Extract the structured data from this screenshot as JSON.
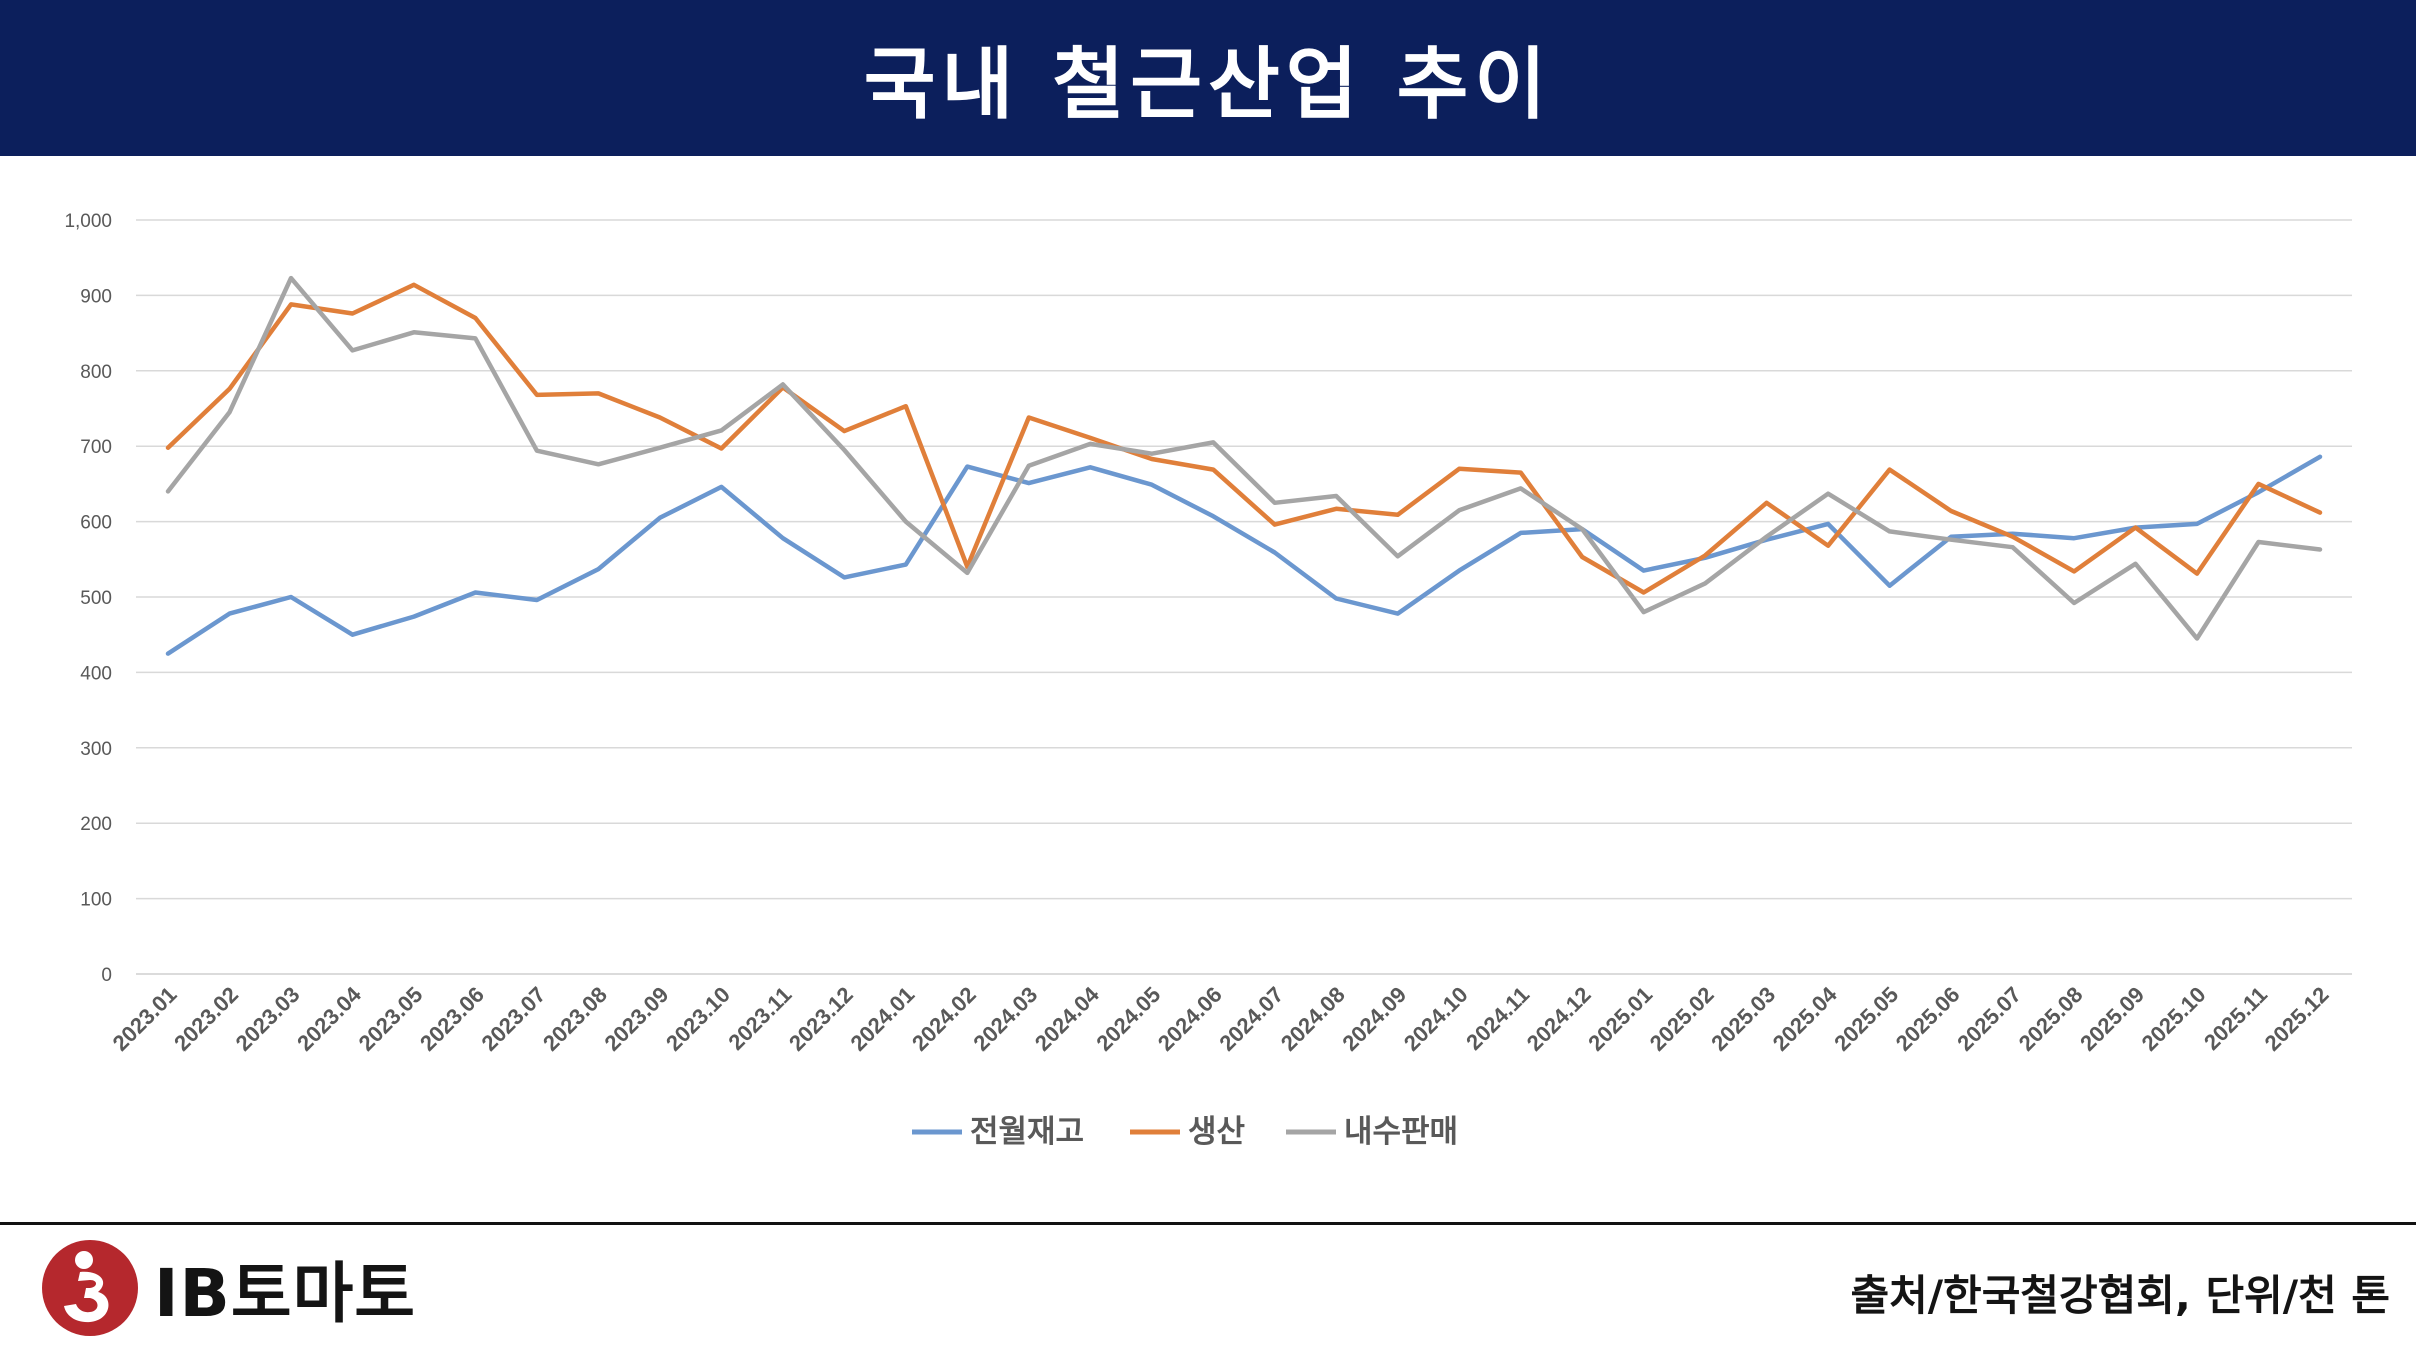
{
  "header": {
    "title": "국내 철근산업 추이"
  },
  "footer": {
    "logo_text": "IB토마토",
    "source": "출처/한국철강협회, 단위/천 톤"
  },
  "chart_data": {
    "type": "line",
    "title": "",
    "xlabel": "",
    "ylabel": "",
    "ylim": [
      0,
      1000
    ],
    "yticks": [
      0,
      100,
      200,
      300,
      400,
      500,
      600,
      700,
      800,
      900,
      1000
    ],
    "ytick_labels": [
      "0",
      "100",
      "200",
      "300",
      "400",
      "500",
      "600",
      "700",
      "800",
      "900",
      "1,000"
    ],
    "grid": true,
    "legend_position": "bottom-center",
    "categories": [
      "2023.01",
      "2023.02",
      "2023.03",
      "2023.04",
      "2023.05",
      "2023.06",
      "2023.07",
      "2023.08",
      "2023.09",
      "2023.10",
      "2023.11",
      "2023.12",
      "2024.01",
      "2024.02",
      "2024.03",
      "2024.04",
      "2024.05",
      "2024.06",
      "2024.07",
      "2024.08",
      "2024.09",
      "2024.10",
      "2024.11",
      "2024.12",
      "2025.01",
      "2025.02",
      "2025.03",
      "2025.04",
      "2025.05",
      "2025.06",
      "2025.07",
      "2025.08",
      "2025.09",
      "2025.10",
      "2025.11",
      "2025.12"
    ],
    "series": [
      {
        "name": "전월재고",
        "color": "#6b97cf",
        "values": [
          425,
          478,
          500,
          450,
          474,
          506,
          496,
          537,
          605,
          646,
          578,
          526,
          543,
          673,
          651,
          672,
          649,
          607,
          559,
          498,
          478,
          535,
          585,
          590,
          535,
          552,
          576,
          597,
          515,
          580,
          584,
          578,
          592,
          597,
          639,
          686
        ]
      },
      {
        "name": "생산",
        "color": "#e07f3a",
        "values": [
          698,
          776,
          888,
          876,
          914,
          870,
          768,
          770,
          738,
          697,
          778,
          720,
          753,
          540,
          738,
          711,
          683,
          669,
          596,
          617,
          609,
          670,
          665,
          553,
          506,
          555,
          625,
          568,
          669,
          614,
          580,
          534,
          592,
          531,
          650,
          612
        ]
      },
      {
        "name": "내수판매",
        "color": "#a5a5a5",
        "values": [
          640,
          745,
          923,
          827,
          851,
          843,
          694,
          676,
          698,
          721,
          782,
          695,
          600,
          532,
          674,
          703,
          690,
          705,
          625,
          634,
          554,
          615,
          644,
          590,
          480,
          518,
          580,
          637,
          587,
          576,
          566,
          492,
          544,
          445,
          573,
          563
        ]
      }
    ]
  }
}
